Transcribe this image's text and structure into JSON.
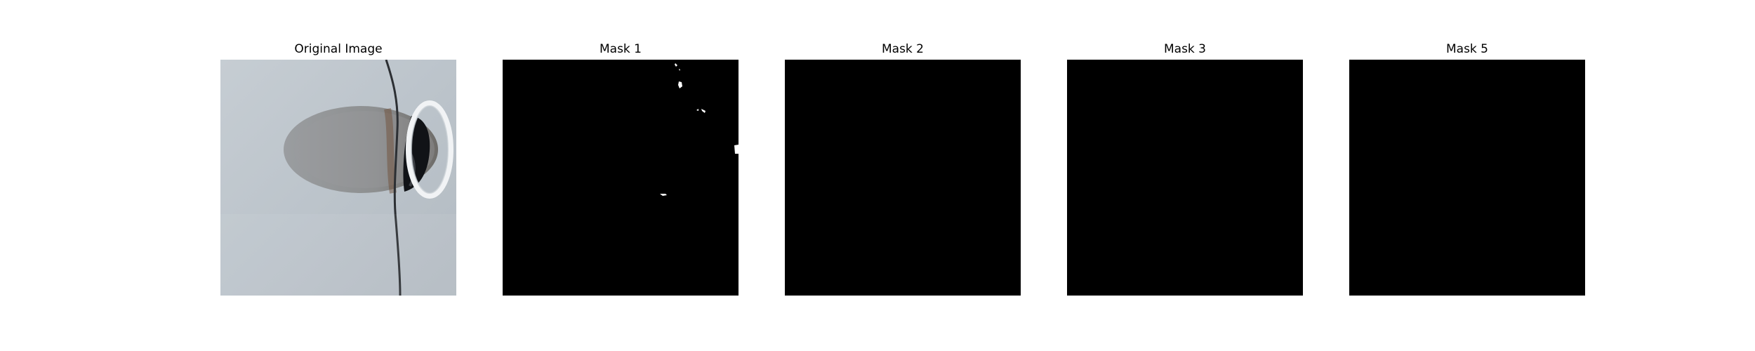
{
  "figure": {
    "panels": [
      {
        "title": "Original Image",
        "kind": "photo",
        "subject": "car-fuel-door-photo"
      },
      {
        "title": "Mask 1",
        "kind": "mask",
        "background": "#000000",
        "foreground": "#ffffff"
      },
      {
        "title": "Mask 2",
        "kind": "mask",
        "background": "#000000",
        "foreground": "#ffffff"
      },
      {
        "title": "Mask 3",
        "kind": "mask",
        "background": "#000000",
        "foreground": "#ffffff"
      },
      {
        "title": "Mask 5",
        "kind": "mask",
        "background": "#000000",
        "foreground": "#ffffff"
      }
    ]
  }
}
